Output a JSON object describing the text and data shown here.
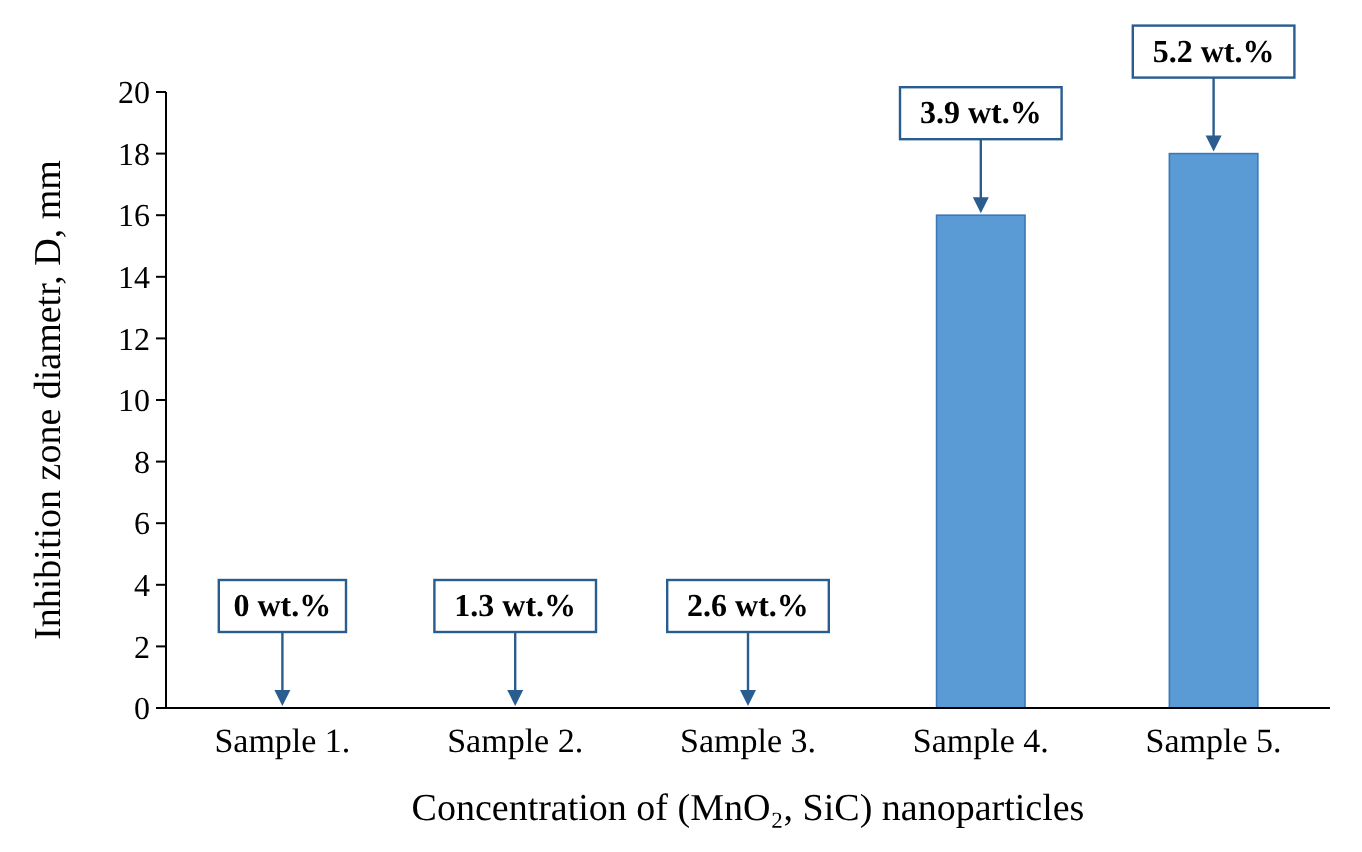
{
  "chart_data": {
    "type": "bar",
    "xlabel": "Concentration of (MnO₂, SiC) nanoparticles",
    "ylabel": "Inhibition zone diametr, D, mm",
    "categories": [
      "Sample 1.",
      "Sample 2.",
      "Sample 3.",
      "Sample 4.",
      "Sample 5."
    ],
    "values": [
      0,
      0,
      0,
      16,
      18
    ],
    "color": "#5b9bd5",
    "ylim": [
      0,
      20
    ],
    "yticks": [
      0,
      2,
      4,
      6,
      8,
      10,
      12,
      14,
      16,
      18,
      20
    ],
    "grid": false,
    "annotations": [
      {
        "text": "0 wt.%",
        "x": "Sample 1.",
        "y": 0
      },
      {
        "text": "1.3 wt.%",
        "x": "Sample 2.",
        "y": 0
      },
      {
        "text": "2.6 wt.%",
        "x": "Sample 3.",
        "y": 0
      },
      {
        "text": "3.9 wt.%",
        "x": "Sample 4.",
        "y": 16
      },
      {
        "text": "5.2 wt.%",
        "x": "Sample 5.",
        "y": 18
      }
    ]
  }
}
